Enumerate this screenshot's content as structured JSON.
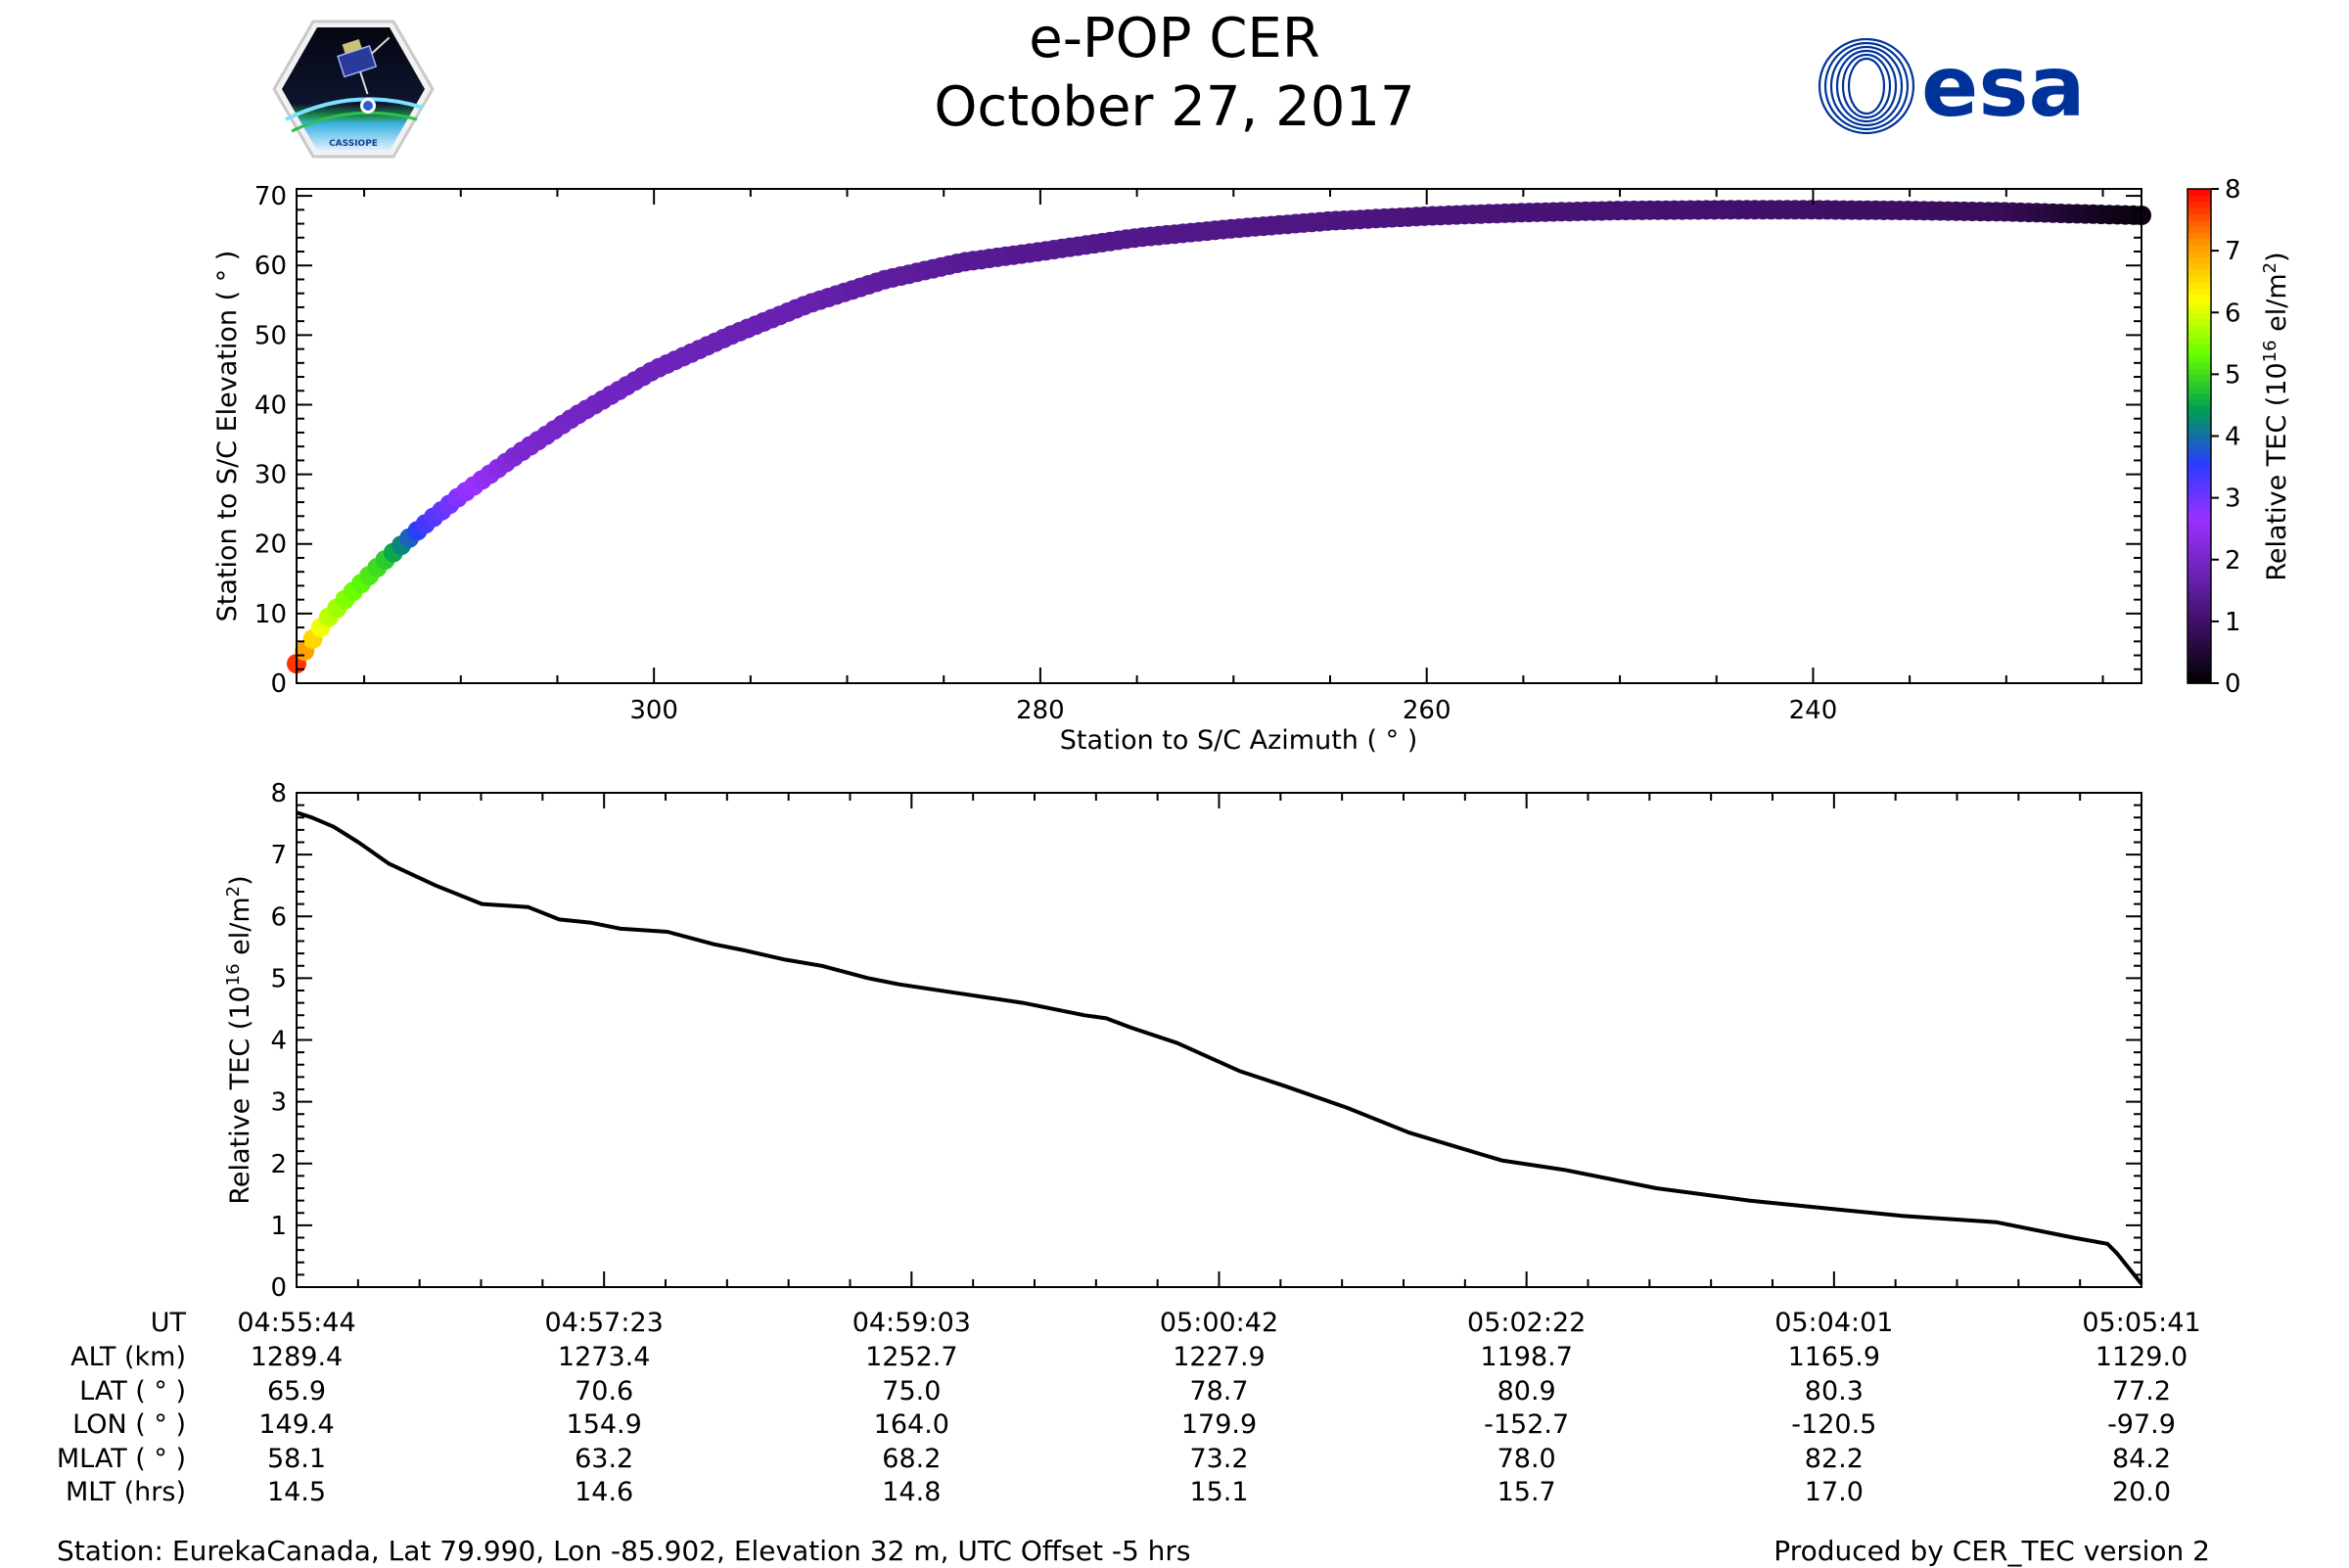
{
  "header": {
    "title": "e-POP CER",
    "date": "October 27, 2017",
    "left_logo_text": "CASSIOPE",
    "right_logo_text": "esa"
  },
  "colors": {
    "esa_blue": "#003399",
    "line": "#000000",
    "colormap": [
      "#000000",
      "#3a0d5c",
      "#6a22b6",
      "#9b30ff",
      "#2b3cff",
      "#00a050",
      "#66ff00",
      "#ffff00",
      "#ff9900",
      "#ff0000"
    ]
  },
  "icons": {
    "left_logo": "cassiope-mission-badge",
    "right_logo": "esa-logo"
  },
  "chart_data": [
    {
      "type": "scatter",
      "xlabel": "Station to S/C Azimuth ( ° )",
      "ylabel": "Station to S/C Elevation ( ° )",
      "xlim": [
        318.5,
        223
      ],
      "ylim": [
        0,
        71
      ],
      "x_inverted": true,
      "xticks": [
        300,
        280,
        260,
        240
      ],
      "yticks": [
        0,
        10,
        20,
        30,
        40,
        50,
        60,
        70
      ],
      "colorbar": {
        "label": "Relative TEC (10",
        "label_sup": "16",
        "label_unit": " el/m",
        "label_unit_sup": "2",
        "label_close": ")",
        "range": [
          0,
          8
        ],
        "ticks": [
          0,
          1,
          2,
          3,
          4,
          5,
          6,
          7,
          8
        ]
      },
      "points": {
        "azimuth": [
          318.5,
          318,
          317,
          316,
          314,
          312,
          310,
          307,
          304,
          300,
          296,
          292,
          288,
          284,
          280,
          275,
          270,
          265,
          260,
          255,
          250,
          245,
          240,
          235,
          230,
          226,
          223
        ],
        "elevation": [
          2.8,
          5,
          9,
          12,
          17.5,
          22.5,
          27,
          33,
          38.5,
          45,
          50,
          54.5,
          58,
          60.5,
          62,
          64,
          65.3,
          66.4,
          67.1,
          67.6,
          67.9,
          68,
          68,
          67.9,
          67.7,
          67.4,
          67.2
        ],
        "tec": [
          7.7,
          6.9,
          5.9,
          5.5,
          4.9,
          3.4,
          2.8,
          2.1,
          1.95,
          1.85,
          1.75,
          1.7,
          1.55,
          1.45,
          1.4,
          1.35,
          1.3,
          1.25,
          1.2,
          1.15,
          1.1,
          1.05,
          1.0,
          0.95,
          0.85,
          0.4,
          0.15
        ]
      }
    },
    {
      "type": "line",
      "xlabel": "",
      "ylabel": "Relative TEC (10",
      "ylabel_sup": "16",
      "ylabel_unit": " el/m",
      "ylabel_unit_sup": "2",
      "ylabel_close": ")",
      "xlim_seconds": [
        0,
        597
      ],
      "ylim": [
        0,
        8
      ],
      "yticks": [
        0,
        1,
        2,
        3,
        4,
        5,
        6,
        7,
        8
      ],
      "time_ticks": [
        "04:55:44",
        "04:57:23",
        "04:59:03",
        "05:00:42",
        "05:02:22",
        "05:04:01",
        "05:05:41"
      ],
      "seconds": [
        0,
        5,
        12,
        20,
        30,
        45,
        60,
        75,
        85,
        95,
        105,
        120,
        135,
        145,
        158,
        170,
        185,
        195,
        215,
        235,
        255,
        262,
        270,
        285,
        305,
        320,
        340,
        360,
        390,
        410,
        440,
        470,
        500,
        520,
        550,
        575,
        586,
        589,
        597
      ],
      "tec": [
        7.68,
        7.6,
        7.45,
        7.2,
        6.85,
        6.5,
        6.2,
        6.15,
        5.95,
        5.9,
        5.8,
        5.75,
        5.55,
        5.45,
        5.3,
        5.2,
        5.0,
        4.9,
        4.75,
        4.6,
        4.4,
        4.35,
        4.2,
        3.95,
        3.5,
        3.25,
        2.9,
        2.5,
        2.05,
        1.9,
        1.6,
        1.4,
        1.25,
        1.15,
        1.05,
        0.8,
        0.7,
        0.55,
        0.05
      ]
    }
  ],
  "ephemeris": {
    "labels": [
      "UT",
      "ALT (km)",
      "LAT ( ° )",
      "LON ( ° )",
      "MLAT ( ° )",
      "MLT (hrs)"
    ],
    "columns": [
      [
        "04:55:44",
        "1289.4",
        "65.9",
        "149.4",
        "58.1",
        "14.5"
      ],
      [
        "04:57:23",
        "1273.4",
        "70.6",
        "154.9",
        "63.2",
        "14.6"
      ],
      [
        "04:59:03",
        "1252.7",
        "75.0",
        "164.0",
        "68.2",
        "14.8"
      ],
      [
        "05:00:42",
        "1227.9",
        "78.7",
        "179.9",
        "73.2",
        "15.1"
      ],
      [
        "05:02:22",
        "1198.7",
        "80.9",
        "-152.7",
        "78.0",
        "15.7"
      ],
      [
        "05:04:01",
        "1165.9",
        "80.3",
        "-120.5",
        "82.2",
        "17.0"
      ],
      [
        "05:05:41",
        "1129.0",
        "77.2",
        "-97.9",
        "84.2",
        "20.0"
      ]
    ]
  },
  "footer": {
    "station": "Station: EurekaCanada, Lat 79.990, Lon -85.902, Elevation 32 m, UTC Offset -5 hrs",
    "produced_by": "Produced by CER_TEC version 2"
  }
}
